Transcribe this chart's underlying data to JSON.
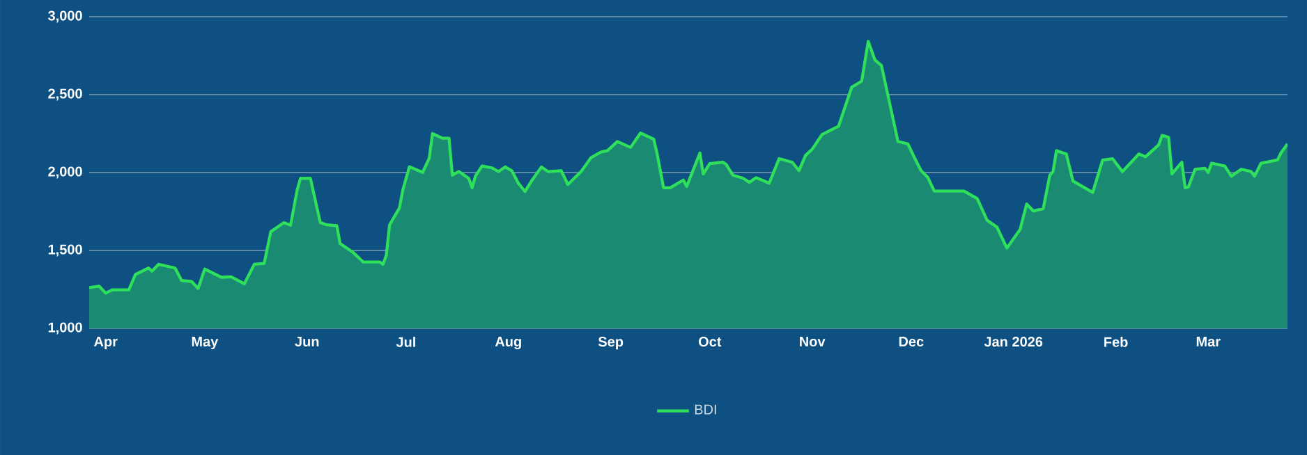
{
  "chart_data": {
    "type": "area",
    "x": [
      "2025-03-27",
      "2025-03-30",
      "2025-04-01",
      "2025-04-03",
      "2025-04-08",
      "2025-04-10",
      "2025-04-14",
      "2025-04-15",
      "2025-04-17",
      "2025-04-22",
      "2025-04-24",
      "2025-04-27",
      "2025-04-29",
      "2025-05-01",
      "2025-05-06",
      "2025-05-09",
      "2025-05-13",
      "2025-05-16",
      "2025-05-19",
      "2025-05-21",
      "2025-05-25",
      "2025-05-27",
      "2025-05-29",
      "2025-05-30",
      "2025-06-02",
      "2025-06-05",
      "2025-06-07",
      "2025-06-10",
      "2025-06-11",
      "2025-06-15",
      "2025-06-18",
      "2025-06-23",
      "2025-06-24",
      "2025-06-25",
      "2025-06-26",
      "2025-06-29",
      "2025-06-30",
      "2025-07-02",
      "2025-07-06",
      "2025-07-08",
      "2025-07-09",
      "2025-07-12",
      "2025-07-14",
      "2025-07-15",
      "2025-07-17",
      "2025-07-20",
      "2025-07-21",
      "2025-07-22",
      "2025-07-24",
      "2025-07-27",
      "2025-07-29",
      "2025-07-31",
      "2025-08-02",
      "2025-08-04",
      "2025-08-06",
      "2025-08-08",
      "2025-08-11",
      "2025-08-13",
      "2025-08-17",
      "2025-08-19",
      "2025-08-23",
      "2025-08-26",
      "2025-08-29",
      "2025-08-31",
      "2025-09-03",
      "2025-09-07",
      "2025-09-10",
      "2025-09-14",
      "2025-09-15",
      "2025-09-17",
      "2025-09-19",
      "2025-09-23",
      "2025-09-24",
      "2025-09-28",
      "2025-09-29",
      "2025-10-01",
      "2025-10-05",
      "2025-10-06",
      "2025-10-08",
      "2025-10-11",
      "2025-10-13",
      "2025-10-15",
      "2025-10-19",
      "2025-10-22",
      "2025-10-26",
      "2025-10-28",
      "2025-10-30",
      "2025-11-01",
      "2025-11-04",
      "2025-11-09",
      "2025-11-13",
      "2025-11-16",
      "2025-11-18",
      "2025-11-20",
      "2025-11-22",
      "2025-11-27",
      "2025-11-30",
      "2025-12-02",
      "2025-12-04",
      "2025-12-06",
      "2025-12-08",
      "2025-12-17",
      "2025-12-21",
      "2025-12-24",
      "2025-12-27",
      "2025-12-30",
      "2026-01-03",
      "2026-01-05",
      "2026-01-07",
      "2026-01-10",
      "2026-01-12",
      "2026-01-13",
      "2026-01-14",
      "2026-01-17",
      "2026-01-19",
      "2026-01-25",
      "2026-01-28",
      "2026-01-31",
      "2026-02-03",
      "2026-02-08",
      "2026-02-10",
      "2026-02-14",
      "2026-02-15",
      "2026-02-17",
      "2026-02-18",
      "2026-02-21",
      "2026-02-22",
      "2026-02-23",
      "2026-02-25",
      "2026-02-28",
      "2026-03-01",
      "2026-03-02",
      "2026-03-06",
      "2026-03-08",
      "2026-03-11",
      "2026-03-14",
      "2026-03-15",
      "2026-03-17",
      "2026-03-22",
      "2026-03-23",
      "2026-03-25"
    ],
    "series": [
      {
        "name": "BDI",
        "color": "#2ee05a",
        "values": [
          1262,
          1271,
          1226,
          1247,
          1247,
          1346,
          1387,
          1367,
          1411,
          1387,
          1307,
          1301,
          1256,
          1381,
          1328,
          1331,
          1286,
          1411,
          1417,
          1620,
          1679,
          1662,
          1888,
          1963,
          1963,
          1679,
          1664,
          1659,
          1545,
          1486,
          1426,
          1426,
          1411,
          1470,
          1664,
          1774,
          1888,
          2037,
          2001,
          2091,
          2250,
          2220,
          2220,
          1983,
          2007,
          1962,
          1902,
          1977,
          2042,
          2030,
          2006,
          2036,
          2012,
          1932,
          1878,
          1946,
          2036,
          2006,
          2012,
          1923,
          2006,
          2095,
          2131,
          2140,
          2199,
          2161,
          2253,
          2214,
          2125,
          1902,
          1902,
          1952,
          1911,
          2125,
          1991,
          2057,
          2066,
          2051,
          1983,
          1964,
          1937,
          1967,
          1932,
          2089,
          2066,
          2012,
          2110,
          2149,
          2244,
          2297,
          2548,
          2586,
          2842,
          2723,
          2687,
          2199,
          2184,
          2095,
          2012,
          1970,
          1881,
          1881,
          1833,
          1694,
          1649,
          1515,
          1635,
          1798,
          1753,
          1768,
          1983,
          2007,
          2140,
          2119,
          1946,
          1872,
          2080,
          2089,
          2006,
          2119,
          2101,
          2178,
          2238,
          2226,
          1991,
          2066,
          1902,
          1908,
          2021,
          2027,
          2000,
          2060,
          2042,
          1976,
          2021,
          2006,
          1976,
          2060,
          2081,
          2125,
          2184
        ]
      }
    ],
    "xlim": [
      "2025-03-27",
      "2026-03-25"
    ],
    "xticks": [
      {
        "value": "2025-04-01",
        "label": "Apr"
      },
      {
        "value": "2025-05-01",
        "label": "May"
      },
      {
        "value": "2025-06-01",
        "label": "Jun"
      },
      {
        "value": "2025-07-01",
        "label": "Jul"
      },
      {
        "value": "2025-08-01",
        "label": "Aug"
      },
      {
        "value": "2025-09-01",
        "label": "Sep"
      },
      {
        "value": "2025-10-01",
        "label": "Oct"
      },
      {
        "value": "2025-11-01",
        "label": "Nov"
      },
      {
        "value": "2025-12-01",
        "label": "Dec"
      },
      {
        "value": "2026-01-01",
        "label": "Jan 2026"
      },
      {
        "value": "2026-02-01",
        "label": "Feb"
      },
      {
        "value": "2026-03-01",
        "label": "Mar"
      }
    ],
    "ylim": [
      1000,
      3000
    ],
    "yticks": [
      {
        "value": 1000,
        "label": "1,000"
      },
      {
        "value": 1500,
        "label": "1,500"
      },
      {
        "value": 2000,
        "label": "2,000"
      },
      {
        "value": 2500,
        "label": "2,500"
      },
      {
        "value": 3000,
        "label": "3,000"
      }
    ],
    "grid": "y",
    "legend": "bottom",
    "line_style": "solid",
    "marker": "none"
  }
}
